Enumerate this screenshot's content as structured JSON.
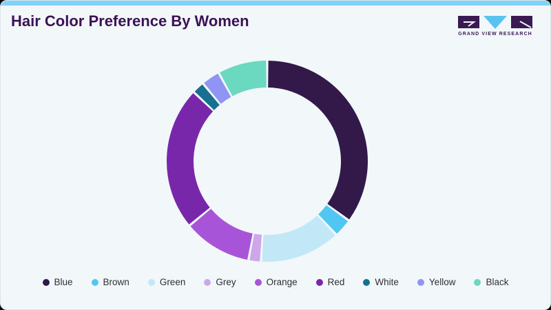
{
  "header": {
    "title": "Hair Color Preference By Women"
  },
  "logo": {
    "text": "GRAND VIEW RESEARCH"
  },
  "colors": {
    "top_bar": "#7fd3f7",
    "background": "#f2f7fa",
    "card_border": "#dce6ec",
    "title": "#3c1254",
    "legend_text": "#2e2e36",
    "logo_purple": "#3a1a52",
    "logo_blue": "#58c3ef",
    "segment_gap": "#f2f7fa"
  },
  "chart_data": {
    "type": "pie",
    "subtype": "donut",
    "title": "Hair Color Preference By Women",
    "categories": [
      "Blue",
      "Brown",
      "Green",
      "Grey",
      "Orange",
      "Red",
      "White",
      "Yellow",
      "Black"
    ],
    "values": [
      35,
      3,
      13,
      2,
      11,
      23,
      2,
      3,
      8
    ],
    "series": [
      {
        "name": "Blue",
        "value": 35,
        "color": "#32194a"
      },
      {
        "name": "Brown",
        "value": 3,
        "color": "#50c7f2"
      },
      {
        "name": "Green",
        "value": 13,
        "color": "#c2e8f8"
      },
      {
        "name": "Grey",
        "value": 2,
        "color": "#cda7e9"
      },
      {
        "name": "Orange",
        "value": 11,
        "color": "#a854d8"
      },
      {
        "name": "Red",
        "value": 23,
        "color": "#7927aa"
      },
      {
        "name": "White",
        "value": 2,
        "color": "#17708f"
      },
      {
        "name": "Yellow",
        "value": 3,
        "color": "#9094f4"
      },
      {
        "name": "Black",
        "value": 8,
        "color": "#6bd8c0"
      }
    ],
    "start_angle_deg": 0,
    "direction": "clockwise",
    "inner_radius_ratio": 0.733,
    "segment_gap_deg": 1.3,
    "legend_position": "bottom",
    "data_labels": false
  }
}
